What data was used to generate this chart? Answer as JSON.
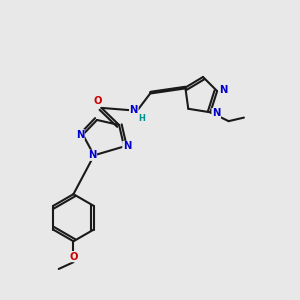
{
  "bg": "#e8e8e8",
  "bc": "#1a1a1a",
  "nc": "#0000cc",
  "oc": "#cc0000",
  "nhc": "#009090",
  "lw": 1.5,
  "fs": 7.2,
  "figsize": [
    3.0,
    3.0
  ],
  "dpi": 100,
  "xlim": [
    0,
    10
  ],
  "ylim": [
    0,
    10
  ]
}
